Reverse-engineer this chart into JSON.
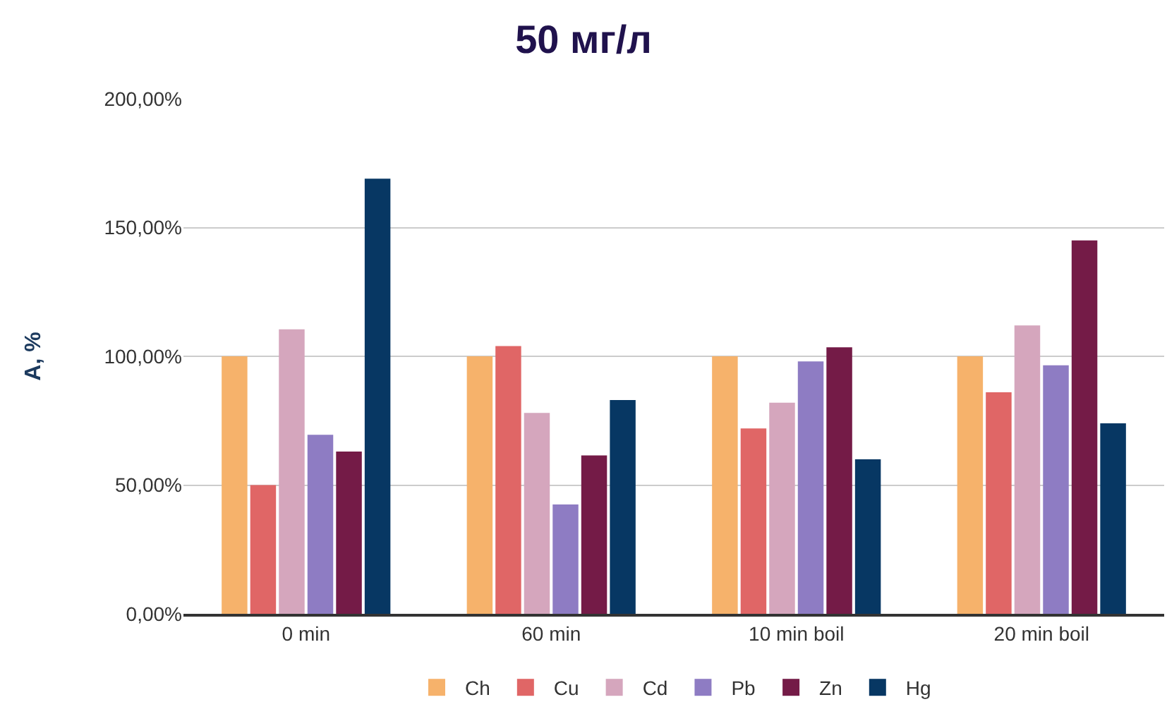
{
  "chart_data": {
    "type": "bar",
    "title": "50 мг/л",
    "ylabel": "A, %",
    "categories": [
      "0 min",
      "60 min",
      "10 min boil",
      "20 min boil"
    ],
    "series": [
      {
        "name": "Ch",
        "color": "#f6b26b",
        "values": [
          100,
          100,
          100,
          100
        ]
      },
      {
        "name": "Cu",
        "color": "#e06666",
        "values": [
          50,
          104,
          72,
          86
        ]
      },
      {
        "name": "Cd",
        "color": "#d5a6bd",
        "values": [
          110.5,
          78,
          82,
          112
        ]
      },
      {
        "name": "Pb",
        "color": "#8e7cc3",
        "values": [
          69.5,
          42.5,
          98,
          96.5
        ]
      },
      {
        "name": "Zn",
        "color": "#741b47",
        "values": [
          63,
          61.5,
          103.5,
          145
        ]
      },
      {
        "name": "Hg",
        "color": "#073763",
        "values": [
          169,
          83,
          60,
          74
        ]
      }
    ],
    "ylim": [
      0,
      200
    ],
    "yticks": [
      {
        "value": 0,
        "label": "0,00%"
      },
      {
        "value": 50,
        "label": "50,00%"
      },
      {
        "value": 100,
        "label": "100,00%"
      },
      {
        "value": 150,
        "label": "150,00%"
      },
      {
        "value": 200,
        "label": "200,00%"
      }
    ],
    "grid": "y",
    "legend": "bottom"
  }
}
